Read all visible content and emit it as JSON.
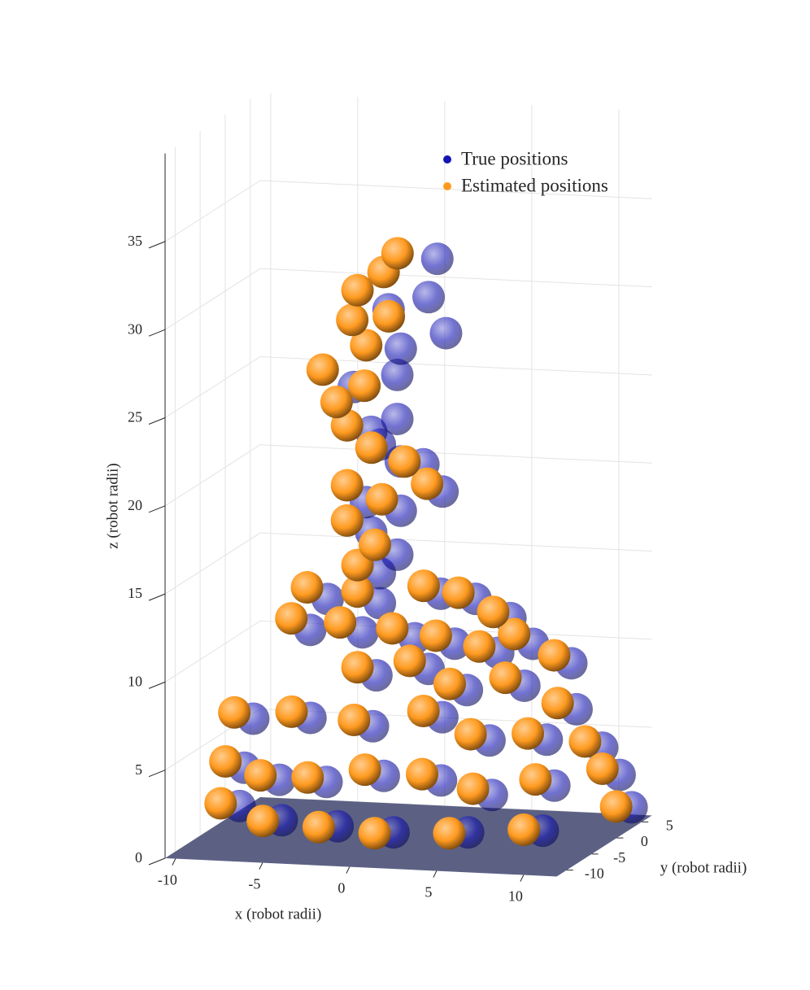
{
  "chart_data": {
    "type": "scatter3d",
    "xlabel": "x (robot radii)",
    "ylabel": "y (robot radii)",
    "zlabel": "z (robot radii)",
    "xlim": [
      -10.6,
      11.9
    ],
    "ylim": [
      -12,
      7
    ],
    "zlim": [
      0,
      40
    ],
    "xticks": [
      -10,
      -5,
      0,
      5,
      10
    ],
    "yticks": [
      -10,
      -5,
      0,
      5
    ],
    "zticks": [
      0,
      5,
      10,
      15,
      20,
      25,
      30,
      35
    ],
    "grid": true,
    "legend": "north",
    "series": [
      {
        "name": "True positions",
        "color": "#1414b4",
        "x": [
          1.3,
          0.8,
          -1.5,
          -0.8,
          1.8,
          -1.0,
          -3.5,
          -1.0,
          -2.5,
          -2.0,
          -0.8,
          0.5,
          1.6,
          -2.8,
          -0.8,
          -2.5,
          -1.0,
          -2.0,
          -5.0,
          -2.0,
          1.5,
          3.5,
          5.5,
          -6.0,
          -3.0,
          0.0,
          2.3,
          4.8,
          6.8,
          9.0,
          -2.2,
          0.8,
          3.0,
          6.3,
          9.3,
          -8.7,
          -5.7,
          -2.4,
          1.3,
          4.3,
          7.3,
          10.2,
          -9.5,
          -7.2,
          -4.2,
          -1.2,
          1.8,
          5.3,
          8.6,
          11.2,
          -9.2,
          -6.2,
          -2.7,
          0.8,
          4.8,
          8.8,
          11.6
        ],
        "y": [
          1,
          1,
          1,
          1,
          1,
          1,
          1,
          1,
          1,
          1,
          1,
          1,
          1,
          1,
          1,
          1,
          1,
          1,
          1,
          1,
          1,
          1,
          1,
          1,
          1,
          1,
          1,
          1,
          1,
          1,
          1,
          1,
          1,
          1,
          1,
          -1,
          0,
          1,
          2,
          1,
          2,
          3,
          0,
          -1,
          -2,
          -1,
          0,
          -2,
          -1,
          3,
          -2,
          -4,
          -5,
          -6,
          -5,
          -4,
          4
        ],
        "z": [
          32.2,
          30.0,
          29.2,
          27.0,
          28.0,
          25.5,
          24.7,
          23.0,
          22.2,
          21.5,
          20.6,
          20.5,
          19.0,
          18.2,
          17.8,
          16.5,
          15.3,
          14.2,
          12.6,
          12.5,
          13.2,
          13.0,
          12.0,
          10.8,
          10.8,
          10.6,
          10.4,
          10.0,
          10.6,
          9.6,
          8.4,
          8.9,
          7.8,
          8.2,
          7.0,
          6.0,
          6.0,
          5.5,
          6.0,
          5.0,
          5.0,
          4.5,
          3.0,
          2.6,
          2.8,
          3.1,
          2.8,
          2.5,
          3.0,
          3.0,
          1.2,
          0.9,
          0.9,
          0.9,
          0.9,
          1.0,
          1.0
        ]
      },
      {
        "name": "Estimated positions",
        "color": "#ff9a1f",
        "x": [
          -0.7,
          -1.5,
          -3.0,
          -3.3,
          -1.2,
          -2.5,
          -5.0,
          -2.6,
          -4.2,
          -3.6,
          -2.2,
          -0.3,
          1.0,
          -3.6,
          -1.6,
          -3.6,
          -2.0,
          -3.0,
          -5.9,
          -3.0,
          0.8,
          2.8,
          4.8,
          -6.8,
          -4.0,
          -1.0,
          1.5,
          4.0,
          6.0,
          8.3,
          -3.0,
          0.0,
          2.3,
          5.5,
          8.5,
          -9.5,
          -6.5,
          -3.2,
          0.5,
          3.5,
          6.5,
          9.5,
          -10.3,
          -8.0,
          -5.0,
          -2.0,
          1.0,
          4.5,
          7.8,
          10.5,
          -10.0,
          -7.0,
          -3.5,
          0.0,
          4.0,
          8.0,
          11.0
        ],
        "y": [
          0,
          0,
          0,
          0,
          0,
          0,
          0,
          0,
          0,
          0,
          0,
          0,
          0,
          0,
          0,
          0,
          0,
          0,
          0,
          0,
          0,
          0,
          0,
          0,
          0,
          0,
          0,
          0,
          0,
          0,
          0,
          0,
          0,
          0,
          0,
          -2,
          -1,
          0,
          1,
          0,
          1,
          2,
          -1,
          -2,
          -3,
          -2,
          -1,
          -3,
          -2,
          2,
          -3,
          -5,
          -6,
          -7,
          -6,
          -5,
          3
        ],
        "z": [
          32.6,
          31.5,
          30.4,
          28.7,
          29.0,
          27.3,
          25.8,
          25.0,
          24.0,
          22.7,
          21.5,
          20.8,
          19.6,
          19.3,
          18.6,
          17.3,
          16.0,
          14.8,
          13.4,
          13.3,
          13.8,
          13.5,
          12.5,
          11.6,
          11.5,
          11.3,
          11.0,
          10.5,
          11.3,
          10.2,
          9.0,
          9.5,
          8.3,
          8.8,
          7.5,
          6.5,
          6.5,
          6.0,
          6.5,
          5.5,
          5.5,
          5.0,
          3.5,
          3.0,
          3.2,
          3.6,
          3.3,
          3.0,
          3.5,
          3.5,
          1.5,
          1.0,
          1.0,
          1.0,
          1.0,
          1.2,
          1.2
        ]
      }
    ]
  }
}
